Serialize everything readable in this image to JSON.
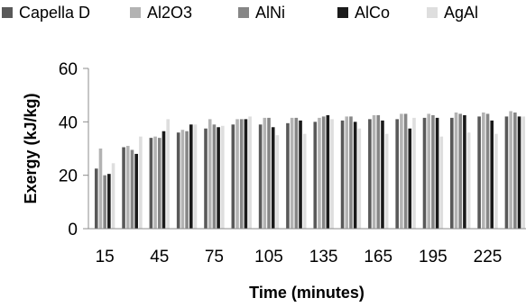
{
  "chart_data": {
    "type": "bar",
    "title": "",
    "xlabel": "Time (minutes)",
    "ylabel": "Exergy (kJ/kg)",
    "ylim": [
      0,
      60
    ],
    "yticks": [
      0,
      20,
      40,
      60
    ],
    "grid": false,
    "legend_position": "top",
    "categories": [
      "15",
      "30",
      "45",
      "60",
      "75",
      "90",
      "105",
      "120",
      "135",
      "150",
      "165",
      "180",
      "195",
      "210",
      "225",
      "240"
    ],
    "x_tick_labels": [
      "15",
      "",
      "45",
      "",
      "75",
      "",
      "105",
      "",
      "135",
      "",
      "165",
      "",
      "195",
      "",
      "225",
      ""
    ],
    "series": [
      {
        "name": "Capella D",
        "color": "#595959",
        "values": [
          22.5,
          30.5,
          34.0,
          36.0,
          37.5,
          39.0,
          39.0,
          39.5,
          40.0,
          40.5,
          41.0,
          41.0,
          41.5,
          41.5,
          42.0,
          42.0
        ]
      },
      {
        "name": "Al2O3",
        "color": "#b3b3b3",
        "values": [
          30.0,
          31.0,
          34.5,
          37.0,
          41.0,
          41.0,
          41.5,
          41.5,
          41.5,
          42.0,
          42.5,
          43.0,
          43.0,
          43.5,
          43.5,
          44.0
        ]
      },
      {
        "name": "AlNi",
        "color": "#868686",
        "values": [
          20.0,
          29.5,
          34.0,
          36.5,
          39.0,
          41.0,
          41.5,
          41.5,
          42.0,
          42.0,
          42.5,
          43.0,
          42.5,
          43.0,
          43.0,
          43.5
        ]
      },
      {
        "name": "AlCo",
        "color": "#1a1a1a",
        "values": [
          20.5,
          28.0,
          36.5,
          39.0,
          38.0,
          41.0,
          38.0,
          40.5,
          42.5,
          40.0,
          40.5,
          37.5,
          41.5,
          42.5,
          40.5,
          42.0
        ]
      },
      {
        "name": "AgAl",
        "color": "#dedede",
        "values": [
          24.5,
          34.5,
          41.0,
          39.0,
          38.5,
          42.0,
          35.0,
          35.5,
          41.0,
          37.5,
          35.5,
          41.5,
          34.5,
          36.0,
          35.5,
          42.0
        ]
      }
    ]
  }
}
